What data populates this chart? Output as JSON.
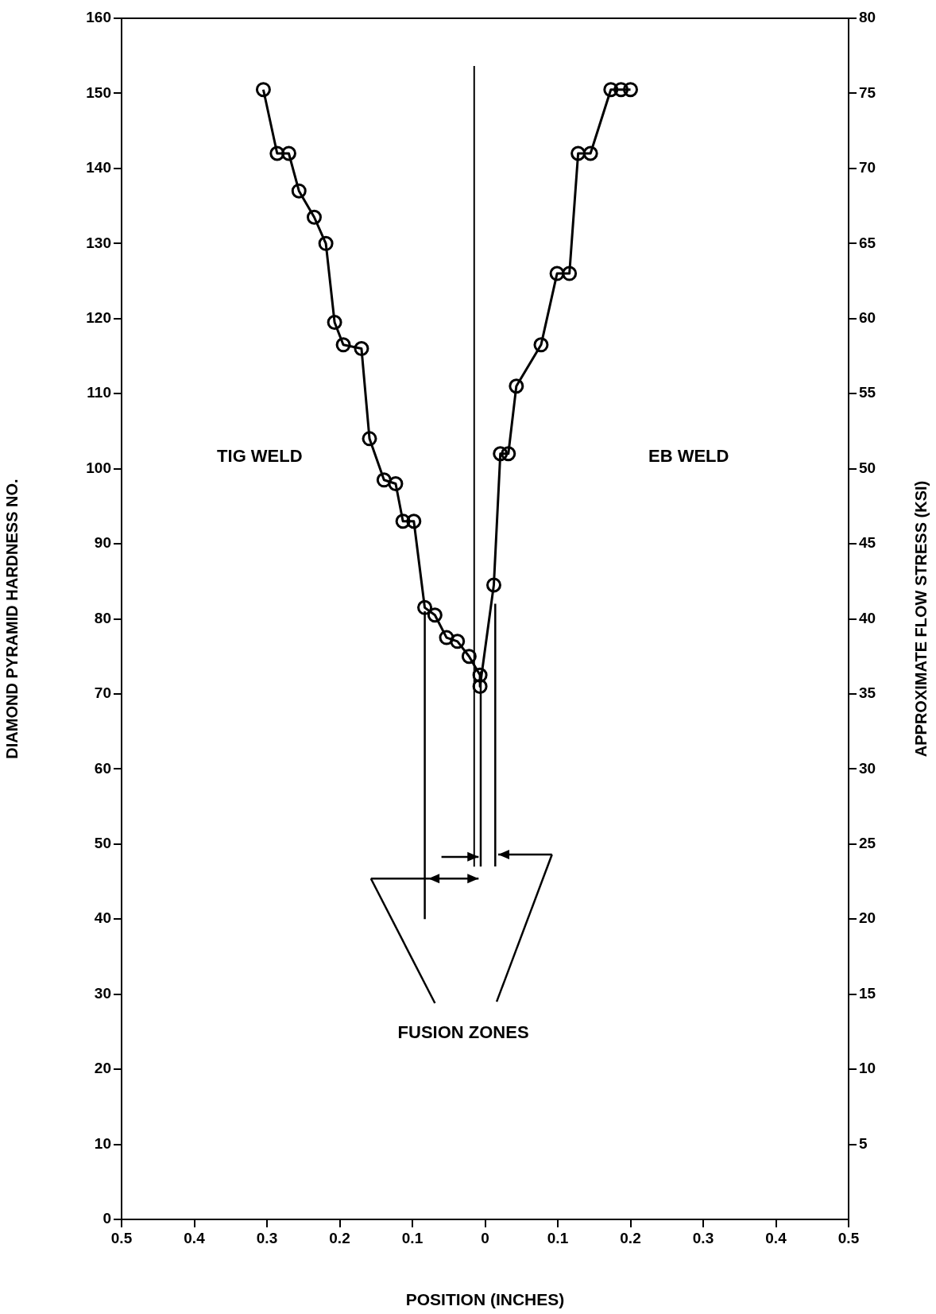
{
  "chart_data": {
    "type": "line",
    "xlabel": "POSITION (INCHES)",
    "ylabel": "DIAMOND PYRAMID HARDNESS NO.",
    "y2label": "APPROXIMATE FLOW STRESS (KSI)",
    "x": [
      -0.305,
      -0.286,
      -0.27,
      -0.256,
      -0.235,
      -0.219,
      -0.207,
      -0.195,
      -0.17,
      -0.159,
      -0.139,
      -0.123,
      -0.113,
      -0.098,
      -0.083,
      -0.069,
      -0.053,
      -0.038,
      -0.022,
      -0.007,
      -0.007,
      0.012,
      0.021,
      0.032,
      0.043,
      0.077,
      0.099,
      0.116,
      0.128,
      0.145,
      0.173,
      0.187,
      0.2
    ],
    "series": [
      {
        "color": "#000000",
        "values": [
          150.5,
          142,
          142,
          137,
          133.5,
          130,
          119.5,
          116.5,
          116,
          104,
          98.5,
          98,
          93,
          93,
          81.5,
          80.5,
          77.5,
          77,
          75,
          72.5,
          71,
          84.5,
          102,
          102,
          111,
          116.5,
          126,
          126,
          142,
          142,
          150.5,
          150.5,
          150.5
        ]
      }
    ],
    "xlim": [
      -0.5,
      0.5
    ],
    "xticks": [
      {
        "value": -0.5,
        "label": "0.5"
      },
      {
        "value": -0.4,
        "label": "0.4"
      },
      {
        "value": -0.3,
        "label": "0.3"
      },
      {
        "value": -0.2,
        "label": "0.2"
      },
      {
        "value": -0.1,
        "label": "0.1"
      },
      0,
      0.1,
      0.2,
      0.3,
      0.4,
      0.5
    ],
    "ylim": [
      0,
      160
    ],
    "yticks": [
      0,
      10,
      20,
      30,
      40,
      50,
      60,
      70,
      80,
      90,
      100,
      110,
      120,
      130,
      140,
      150,
      160
    ],
    "y2lim": [
      0,
      80
    ],
    "y2ticks": [
      5,
      10,
      15,
      20,
      25,
      30,
      35,
      40,
      45,
      50,
      55,
      60,
      65,
      70,
      75,
      80
    ],
    "ref_lines": [
      {
        "axis": "x",
        "value": -0.015,
        "color": "#000000",
        "line_style": "solid"
      }
    ],
    "annotations": [
      "TIG WELD",
      "EB WELD",
      "FUSION ZONES"
    ],
    "marker": "circle",
    "line_style": "solid",
    "grid": false,
    "legend": false
  }
}
